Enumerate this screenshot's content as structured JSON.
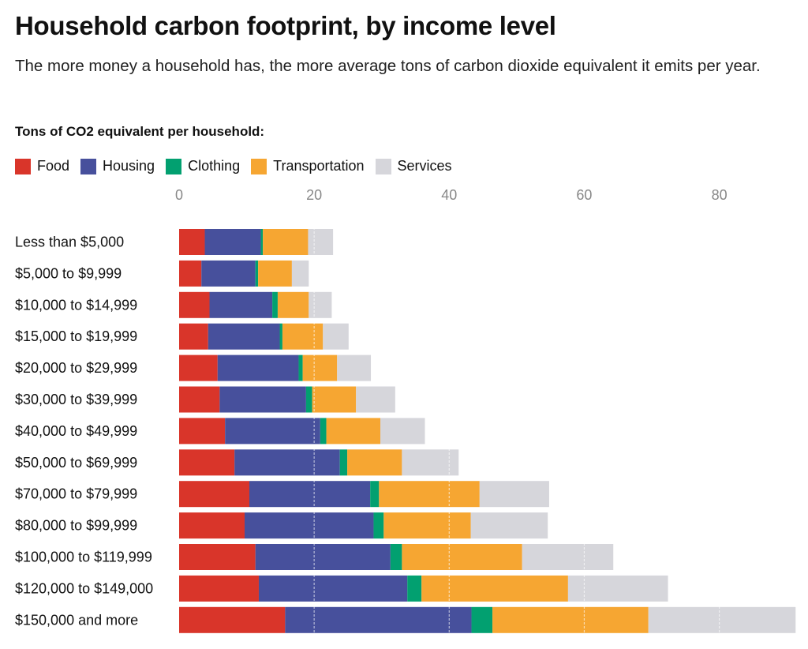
{
  "title": "Household carbon footprint, by income level",
  "subtitle": "The more money a household has, the more average tons of carbon dioxide equivalent it emits per year.",
  "legend_title": "Tons of CO2 equivalent per household:",
  "chart_data": {
    "type": "bar",
    "orientation": "horizontal",
    "stacked": true,
    "title": "Household carbon footprint, by income level",
    "xlim": [
      0,
      91.5
    ],
    "xticks": [
      0,
      20,
      40,
      60,
      80
    ],
    "grid": true,
    "legend_placement": "top-left",
    "categories": [
      "Less than $5,000",
      "$5,000 to $9,999",
      "$10,000 to $14,999",
      "$15,000 to $19,999",
      "$20,000 to $29,999",
      "$30,000 to $39,999",
      "$40,000 to $49,999",
      "$50,000 to $69,999",
      "$70,000 to $79,999",
      "$80,000 to $99,999",
      "$100,000 to $119,999",
      "$120,000 to $149,000",
      "$150,000 and more"
    ],
    "series": [
      {
        "name": "Food",
        "color": "#D9352A",
        "values": [
          3.8,
          3.3,
          4.5,
          4.3,
          5.7,
          6.0,
          6.8,
          8.2,
          10.4,
          9.7,
          11.3,
          11.8,
          15.7
        ]
      },
      {
        "name": "Housing",
        "color": "#47509C",
        "values": [
          8.3,
          8.0,
          9.3,
          10.6,
          12.0,
          12.8,
          14.1,
          15.6,
          17.9,
          19.1,
          20.0,
          22.0,
          27.6
        ]
      },
      {
        "name": "Clothing",
        "color": "#02A070",
        "values": [
          0.3,
          0.4,
          0.8,
          0.4,
          0.6,
          0.9,
          0.9,
          1.1,
          1.3,
          1.5,
          1.7,
          2.1,
          3.1
        ]
      },
      {
        "name": "Transportation",
        "color": "#F6A632",
        "values": [
          6.7,
          5.0,
          4.6,
          6.0,
          5.1,
          6.5,
          8.0,
          8.1,
          14.9,
          12.9,
          17.8,
          21.7,
          23.1
        ]
      },
      {
        "name": "Services",
        "color": "#D6D6DB",
        "values": [
          3.7,
          2.5,
          3.4,
          3.8,
          5.0,
          5.8,
          6.6,
          8.4,
          10.3,
          11.4,
          13.5,
          14.8,
          21.8
        ]
      }
    ]
  }
}
